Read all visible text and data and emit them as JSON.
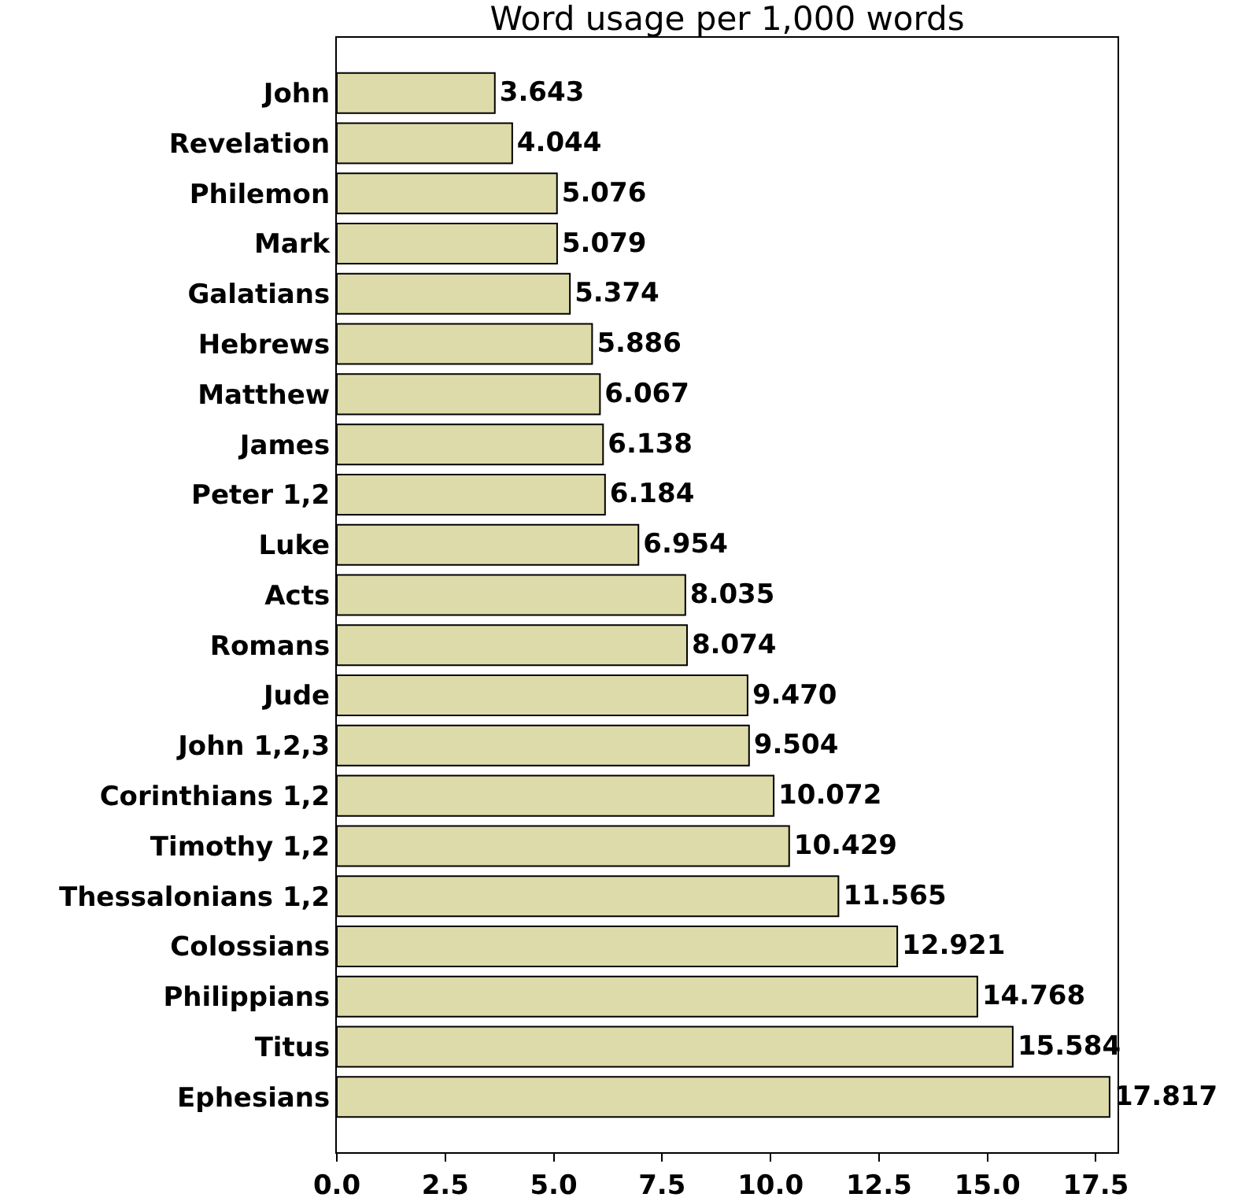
{
  "chart_data": {
    "type": "bar",
    "orientation": "horizontal",
    "title": "Word usage per 1,000 words",
    "categories": [
      "John",
      "Revelation",
      "Philemon",
      "Mark",
      "Galatians",
      "Hebrews",
      "Matthew",
      "James",
      "Peter 1,2",
      "Luke",
      "Acts",
      "Romans",
      "Jude",
      "John 1,2,3",
      "Corinthians 1,2",
      "Timothy 1,2",
      "Thessalonians 1,2",
      "Colossians",
      "Philippians",
      "Titus",
      "Ephesians"
    ],
    "values": [
      3.643,
      4.044,
      5.076,
      5.079,
      5.374,
      5.886,
      6.067,
      6.138,
      6.184,
      6.954,
      8.035,
      8.074,
      9.47,
      9.504,
      10.072,
      10.429,
      11.565,
      12.921,
      14.768,
      15.584,
      17.817
    ],
    "value_labels": [
      "3.643",
      "4.044",
      "5.076",
      "5.079",
      "5.374",
      "5.886",
      "6.067",
      "6.138",
      "6.184",
      "6.954",
      "8.035",
      "8.074",
      "9.470",
      "9.504",
      "10.072",
      "10.429",
      "11.565",
      "12.921",
      "14.768",
      "15.584",
      "17.817"
    ],
    "color": "#dddba9",
    "xlim": [
      0,
      18
    ],
    "xticks": [
      {
        "value": 0,
        "label": "0.0"
      },
      {
        "value": 2.5,
        "label": "2.5"
      },
      {
        "value": 5,
        "label": "5.0"
      },
      {
        "value": 7.5,
        "label": "7.5"
      },
      {
        "value": 10,
        "label": "10.0"
      },
      {
        "value": 12.5,
        "label": "12.5"
      },
      {
        "value": 15,
        "label": "15.0"
      },
      {
        "value": 17.5,
        "label": "17.5"
      }
    ],
    "grid": false,
    "legend": false
  }
}
